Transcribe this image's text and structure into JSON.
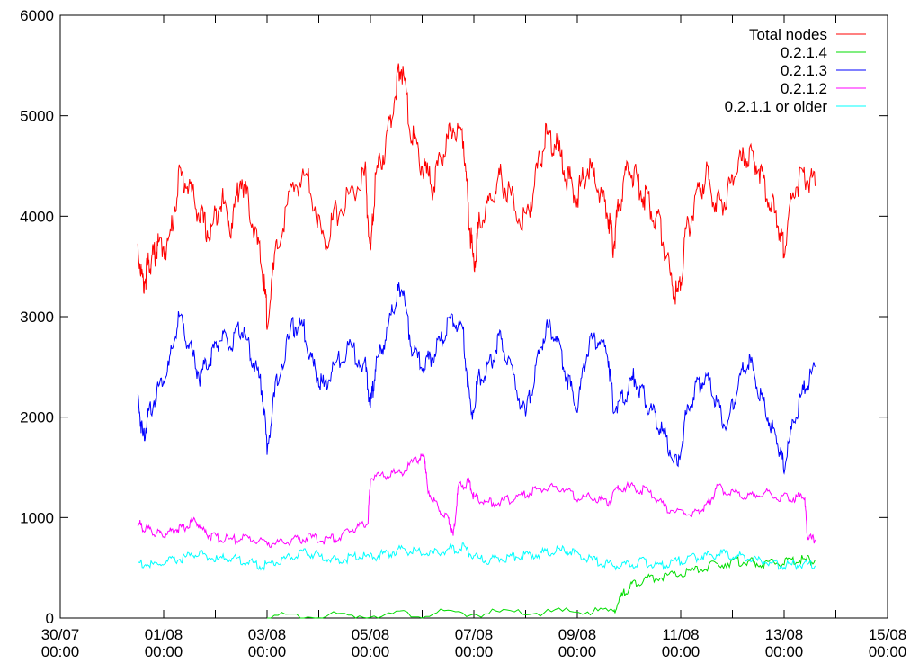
{
  "chart_data": {
    "type": "line",
    "title": "",
    "xlabel": "",
    "ylabel": "",
    "xlim": [
      "30/07 00:00",
      "15/08 00:00"
    ],
    "ylim": [
      0,
      6000
    ],
    "grid": false,
    "legend_position": "top-right",
    "x_ticks": [
      {
        "top": "30/07",
        "bottom": "00:00",
        "day": 0
      },
      {
        "top": "01/08",
        "bottom": "00:00",
        "day": 2
      },
      {
        "top": "03/08",
        "bottom": "00:00",
        "day": 4
      },
      {
        "top": "05/08",
        "bottom": "00:00",
        "day": 6
      },
      {
        "top": "07/08",
        "bottom": "00:00",
        "day": 8
      },
      {
        "top": "09/08",
        "bottom": "00:00",
        "day": 10
      },
      {
        "top": "11/08",
        "bottom": "00:00",
        "day": 12
      },
      {
        "top": "13/08",
        "bottom": "00:00",
        "day": 14
      },
      {
        "top": "15/08",
        "bottom": "00:00",
        "day": 16
      }
    ],
    "y_ticks": [
      0,
      1000,
      2000,
      3000,
      4000,
      5000,
      6000
    ],
    "series": [
      {
        "name": "Total nodes",
        "color": "#ff0000",
        "points": [
          [
            1.5,
            3700
          ],
          [
            1.6,
            3300
          ],
          [
            1.7,
            3500
          ],
          [
            1.8,
            3600
          ],
          [
            1.9,
            3700
          ],
          [
            2.1,
            3700
          ],
          [
            2.3,
            4400
          ],
          [
            2.5,
            4300
          ],
          [
            2.7,
            4000
          ],
          [
            2.9,
            3800
          ],
          [
            3.1,
            4200
          ],
          [
            3.3,
            3900
          ],
          [
            3.5,
            4400
          ],
          [
            3.7,
            4000
          ],
          [
            3.9,
            3500
          ],
          [
            4.0,
            3000
          ],
          [
            4.2,
            3700
          ],
          [
            4.5,
            4300
          ],
          [
            4.8,
            4400
          ],
          [
            5.1,
            3700
          ],
          [
            5.3,
            4000
          ],
          [
            5.6,
            4200
          ],
          [
            5.9,
            4400
          ],
          [
            6.0,
            3600
          ],
          [
            6.1,
            4400
          ],
          [
            6.3,
            4700
          ],
          [
            6.5,
            5300
          ],
          [
            6.6,
            5500
          ],
          [
            6.8,
            4800
          ],
          [
            7.0,
            4500
          ],
          [
            7.2,
            4300
          ],
          [
            7.4,
            4600
          ],
          [
            7.6,
            4900
          ],
          [
            7.8,
            4800
          ],
          [
            7.9,
            4000
          ],
          [
            8.0,
            3500
          ],
          [
            8.1,
            3900
          ],
          [
            8.3,
            4100
          ],
          [
            8.5,
            4400
          ],
          [
            8.7,
            4200
          ],
          [
            9.0,
            3900
          ],
          [
            9.2,
            4400
          ],
          [
            9.4,
            4800
          ],
          [
            9.6,
            4700
          ],
          [
            9.8,
            4400
          ],
          [
            10.0,
            4200
          ],
          [
            10.2,
            4500
          ],
          [
            10.4,
            4300
          ],
          [
            10.6,
            4000
          ],
          [
            10.7,
            3700
          ],
          [
            10.8,
            4100
          ],
          [
            11.0,
            4500
          ],
          [
            11.2,
            4300
          ],
          [
            11.4,
            4100
          ],
          [
            11.6,
            3900
          ],
          [
            11.8,
            3400
          ],
          [
            11.95,
            3200
          ],
          [
            12.1,
            3800
          ],
          [
            12.3,
            4200
          ],
          [
            12.5,
            4400
          ],
          [
            12.7,
            4100
          ],
          [
            12.9,
            4200
          ],
          [
            13.1,
            4500
          ],
          [
            13.3,
            4600
          ],
          [
            13.5,
            4500
          ],
          [
            13.7,
            4200
          ],
          [
            13.9,
            3900
          ],
          [
            14.0,
            3700
          ],
          [
            14.2,
            4300
          ],
          [
            14.4,
            4400
          ],
          [
            14.6,
            4300
          ]
        ]
      },
      {
        "name": "0.2.1.4",
        "color": "#00dd00",
        "points": [
          [
            4.0,
            10
          ],
          [
            5.0,
            15
          ],
          [
            6.0,
            30
          ],
          [
            7.0,
            40
          ],
          [
            8.0,
            45
          ],
          [
            9.0,
            50
          ],
          [
            10.0,
            60
          ],
          [
            10.7,
            70
          ],
          [
            10.9,
            250
          ],
          [
            11.1,
            350
          ],
          [
            11.4,
            400
          ],
          [
            11.8,
            420
          ],
          [
            12.2,
            460
          ],
          [
            12.6,
            520
          ],
          [
            13.0,
            560
          ],
          [
            13.3,
            560
          ],
          [
            13.6,
            530
          ],
          [
            14.0,
            560
          ],
          [
            14.3,
            580
          ],
          [
            14.6,
            580
          ]
        ]
      },
      {
        "name": "0.2.1.3",
        "color": "#0000ff",
        "points": [
          [
            1.5,
            2200
          ],
          [
            1.6,
            1800
          ],
          [
            1.7,
            2000
          ],
          [
            1.9,
            2300
          ],
          [
            2.1,
            2500
          ],
          [
            2.3,
            3000
          ],
          [
            2.5,
            2700
          ],
          [
            2.7,
            2400
          ],
          [
            2.9,
            2600
          ],
          [
            3.1,
            2800
          ],
          [
            3.3,
            2700
          ],
          [
            3.5,
            2900
          ],
          [
            3.7,
            2600
          ],
          [
            3.9,
            2300
          ],
          [
            4.0,
            1700
          ],
          [
            4.2,
            2400
          ],
          [
            4.5,
            2900
          ],
          [
            4.7,
            2900
          ],
          [
            4.9,
            2500
          ],
          [
            5.1,
            2300
          ],
          [
            5.3,
            2500
          ],
          [
            5.6,
            2700
          ],
          [
            5.9,
            2500
          ],
          [
            6.0,
            2100
          ],
          [
            6.1,
            2500
          ],
          [
            6.3,
            2800
          ],
          [
            6.5,
            3200
          ],
          [
            6.6,
            3300
          ],
          [
            6.8,
            2700
          ],
          [
            7.0,
            2500
          ],
          [
            7.2,
            2600
          ],
          [
            7.4,
            2800
          ],
          [
            7.6,
            3000
          ],
          [
            7.8,
            2800
          ],
          [
            7.95,
            2000
          ],
          [
            8.1,
            2400
          ],
          [
            8.3,
            2500
          ],
          [
            8.5,
            2800
          ],
          [
            8.7,
            2500
          ],
          [
            9.0,
            2000
          ],
          [
            9.2,
            2500
          ],
          [
            9.4,
            2900
          ],
          [
            9.6,
            2800
          ],
          [
            9.8,
            2400
          ],
          [
            10.0,
            2100
          ],
          [
            10.2,
            2700
          ],
          [
            10.4,
            2800
          ],
          [
            10.6,
            2600
          ],
          [
            10.7,
            2100
          ],
          [
            10.9,
            2200
          ],
          [
            11.1,
            2400
          ],
          [
            11.3,
            2200
          ],
          [
            11.5,
            2000
          ],
          [
            11.7,
            1800
          ],
          [
            11.95,
            1500
          ],
          [
            12.1,
            2000
          ],
          [
            12.3,
            2300
          ],
          [
            12.5,
            2400
          ],
          [
            12.7,
            2100
          ],
          [
            12.9,
            1900
          ],
          [
            13.1,
            2300
          ],
          [
            13.3,
            2600
          ],
          [
            13.5,
            2300
          ],
          [
            13.7,
            2000
          ],
          [
            13.9,
            1700
          ],
          [
            14.0,
            1500
          ],
          [
            14.2,
            2000
          ],
          [
            14.4,
            2300
          ],
          [
            14.6,
            2500
          ]
        ]
      },
      {
        "name": "0.2.1.2",
        "color": "#ff00ff",
        "points": [
          [
            1.5,
            950
          ],
          [
            1.6,
            900
          ],
          [
            1.8,
            850
          ],
          [
            2.0,
            830
          ],
          [
            2.2,
            880
          ],
          [
            2.4,
            900
          ],
          [
            2.6,
            980
          ],
          [
            2.8,
            850
          ],
          [
            3.0,
            800
          ],
          [
            3.3,
            780
          ],
          [
            3.6,
            800
          ],
          [
            3.9,
            760
          ],
          [
            4.2,
            740
          ],
          [
            4.5,
            770
          ],
          [
            4.8,
            800
          ],
          [
            5.1,
            780
          ],
          [
            5.4,
            800
          ],
          [
            5.7,
            900
          ],
          [
            5.95,
            950
          ],
          [
            6.0,
            1400
          ],
          [
            6.3,
            1420
          ],
          [
            6.6,
            1450
          ],
          [
            6.9,
            1580
          ],
          [
            7.05,
            1600
          ],
          [
            7.1,
            1300
          ],
          [
            7.3,
            1100
          ],
          [
            7.5,
            1000
          ],
          [
            7.6,
            800
          ],
          [
            7.7,
            1300
          ],
          [
            7.9,
            1350
          ],
          [
            8.0,
            1200
          ],
          [
            8.2,
            1150
          ],
          [
            8.5,
            1150
          ],
          [
            8.8,
            1200
          ],
          [
            9.1,
            1250
          ],
          [
            9.4,
            1300
          ],
          [
            9.7,
            1300
          ],
          [
            10.0,
            1200
          ],
          [
            10.3,
            1200
          ],
          [
            10.6,
            1150
          ],
          [
            10.8,
            1300
          ],
          [
            11.1,
            1300
          ],
          [
            11.4,
            1250
          ],
          [
            11.7,
            1100
          ],
          [
            12.0,
            1050
          ],
          [
            12.3,
            1050
          ],
          [
            12.5,
            1100
          ],
          [
            12.7,
            1300
          ],
          [
            13.0,
            1250
          ],
          [
            13.3,
            1200
          ],
          [
            13.6,
            1250
          ],
          [
            13.9,
            1200
          ],
          [
            14.2,
            1200
          ],
          [
            14.4,
            1200
          ],
          [
            14.45,
            800
          ],
          [
            14.6,
            780
          ]
        ]
      },
      {
        "name": "0.2.1.1 or older",
        "color": "#00ffff",
        "points": [
          [
            1.5,
            550
          ],
          [
            1.8,
            520
          ],
          [
            2.1,
            560
          ],
          [
            2.4,
            600
          ],
          [
            2.7,
            650
          ],
          [
            3.0,
            580
          ],
          [
            3.3,
            600
          ],
          [
            3.6,
            560
          ],
          [
            3.9,
            520
          ],
          [
            4.2,
            560
          ],
          [
            4.5,
            620
          ],
          [
            4.8,
            650
          ],
          [
            5.1,
            600
          ],
          [
            5.4,
            570
          ],
          [
            5.7,
            620
          ],
          [
            6.0,
            600
          ],
          [
            6.3,
            640
          ],
          [
            6.6,
            680
          ],
          [
            6.9,
            650
          ],
          [
            7.2,
            640
          ],
          [
            7.5,
            680
          ],
          [
            7.8,
            700
          ],
          [
            8.0,
            600
          ],
          [
            8.3,
            580
          ],
          [
            8.6,
            600
          ],
          [
            8.9,
            620
          ],
          [
            9.2,
            640
          ],
          [
            9.5,
            660
          ],
          [
            9.8,
            680
          ],
          [
            10.1,
            600
          ],
          [
            10.4,
            560
          ],
          [
            10.7,
            520
          ],
          [
            11.0,
            540
          ],
          [
            11.3,
            560
          ],
          [
            11.6,
            520
          ],
          [
            11.9,
            560
          ],
          [
            12.2,
            600
          ],
          [
            12.5,
            620
          ],
          [
            12.8,
            640
          ],
          [
            13.1,
            620
          ],
          [
            13.4,
            580
          ],
          [
            13.7,
            550
          ],
          [
            14.0,
            520
          ],
          [
            14.3,
            530
          ],
          [
            14.6,
            520
          ]
        ]
      }
    ]
  }
}
